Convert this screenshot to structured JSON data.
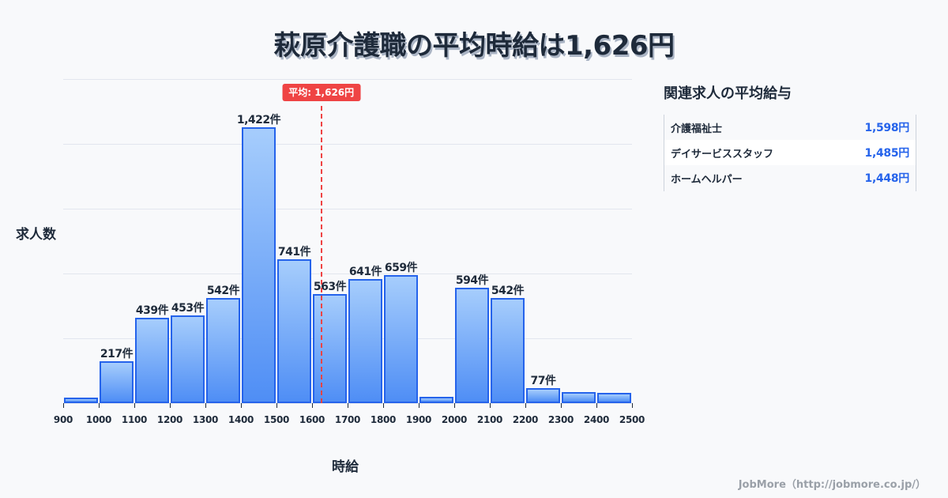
{
  "title": "萩原介護職の平均時給は1,626円",
  "axis": {
    "ylabel": "求人数",
    "xlabel": "時給"
  },
  "average": {
    "label": "平均: 1,626円",
    "value": 1626
  },
  "side_panel": {
    "title": "関連求人の平均給与",
    "rows": [
      {
        "name": "介護福祉士",
        "value": "1,598円"
      },
      {
        "name": "デイサービススタッフ",
        "value": "1,485円"
      },
      {
        "name": "ホームヘルパー",
        "value": "1,448円"
      }
    ]
  },
  "footer": "JobMore（http://jobmore.co.jp/）",
  "colors": {
    "bar_fill_top": "#a6cdfc",
    "bar_fill_bottom": "#4f8ef5",
    "bar_border": "#2563eb",
    "average_line": "#ef4444",
    "value_text": "#2563eb"
  },
  "chart_data": {
    "type": "bar",
    "title": "萩原介護職の平均時給は1,626円",
    "xlabel": "時給",
    "ylabel": "求人数",
    "x_ticks": [
      "900",
      "1000",
      "1100",
      "1200",
      "1300",
      "1400",
      "1500",
      "1600",
      "1700",
      "1800",
      "1900",
      "2000",
      "2100",
      "2200",
      "2300",
      "2400",
      "2500"
    ],
    "categories": [
      "900-1000",
      "1000-1100",
      "1100-1200",
      "1200-1300",
      "1300-1400",
      "1400-1500",
      "1500-1600",
      "1600-1700",
      "1700-1800",
      "1800-1900",
      "1900-2000",
      "2000-2100",
      "2100-2200",
      "2200-2300",
      "2300-2400",
      "2400-2500"
    ],
    "values": [
      28,
      217,
      439,
      453,
      542,
      1422,
      741,
      563,
      641,
      659,
      33,
      594,
      542,
      77,
      57,
      53
    ],
    "labels": [
      "",
      "217件",
      "439件",
      "453件",
      "542件",
      "1,422件",
      "741件",
      "563件",
      "641件",
      "659件",
      "",
      "594件",
      "542件",
      "77件",
      "",
      ""
    ],
    "xlim": [
      900,
      2500
    ],
    "ylim": [
      0,
      1670
    ],
    "grid": true,
    "annotations": [
      {
        "type": "vline",
        "x": 1626,
        "label": "平均: 1,626円",
        "color": "#ef4444",
        "style": "dashed"
      }
    ]
  }
}
